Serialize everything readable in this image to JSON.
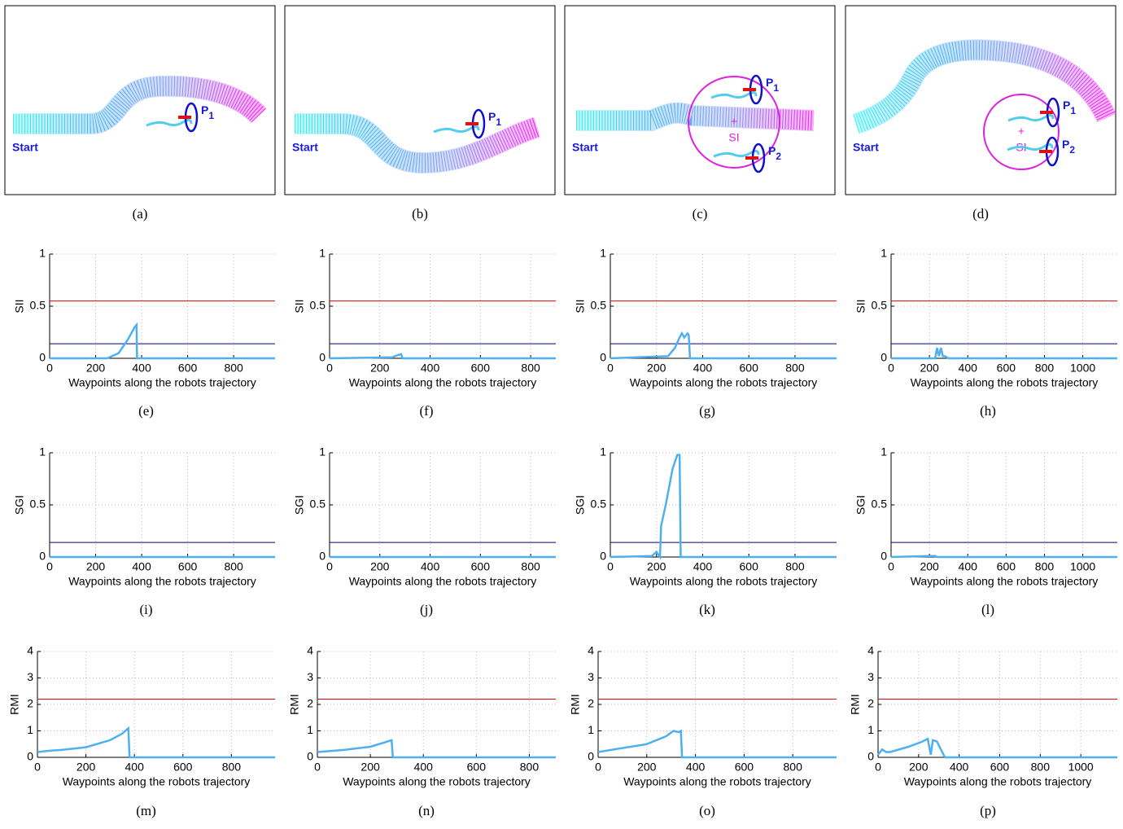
{
  "diagrams": [
    {
      "caption": "(a)",
      "start": "Start",
      "people": [
        {
          "label": "P",
          "sub": "1"
        }
      ]
    },
    {
      "caption": "(b)",
      "start": "Start",
      "people": [
        {
          "label": "P",
          "sub": "1"
        }
      ]
    },
    {
      "caption": "(c)",
      "start": "Start",
      "people": [
        {
          "label": "P",
          "sub": "1"
        },
        {
          "label": "P",
          "sub": "2"
        }
      ],
      "si": "SI"
    },
    {
      "caption": "(d)",
      "start": "Start",
      "people": [
        {
          "label": "P",
          "sub": "1"
        },
        {
          "label": "P",
          "sub": "2"
        }
      ],
      "si": "SI"
    }
  ],
  "chart_data": [
    {
      "type": "line",
      "caption": "(e)",
      "ylabel": "SII",
      "xlabel": "Waypoints along the robots trajectory",
      "xlim": [
        0,
        980
      ],
      "ylim": [
        0,
        1
      ],
      "xticks": [
        0,
        200,
        400,
        600,
        800
      ],
      "yticks": [
        0,
        0.5,
        1
      ],
      "grid": true,
      "hlines": [
        {
          "value": 0.55,
          "color": "#e00000"
        },
        {
          "value": 0.14,
          "color": "#000080"
        }
      ],
      "x": [
        0,
        250,
        300,
        340,
        370,
        378,
        380,
        980
      ],
      "series": [
        {
          "color": "#4fb0f0",
          "values": [
            0,
            0,
            0.05,
            0.18,
            0.3,
            0.32,
            0,
            0
          ]
        }
      ]
    },
    {
      "type": "line",
      "caption": "(f)",
      "ylabel": "SII",
      "xlabel": "Waypoints along the robots trajectory",
      "xlim": [
        0,
        900
      ],
      "ylim": [
        0,
        1
      ],
      "xticks": [
        0,
        200,
        400,
        600,
        800
      ],
      "yticks": [
        0,
        0.5,
        1
      ],
      "grid": true,
      "hlines": [
        {
          "value": 0.55,
          "color": "#e00000"
        },
        {
          "value": 0.14,
          "color": "#000080"
        }
      ],
      "x": [
        0,
        250,
        270,
        285,
        290,
        900
      ],
      "series": [
        {
          "color": "#4fb0f0",
          "values": [
            0,
            0.01,
            0.03,
            0.04,
            0,
            0
          ]
        }
      ]
    },
    {
      "type": "line",
      "caption": "(g)",
      "ylabel": "SII",
      "xlabel": "Waypoints along the robots trajectory",
      "xlim": [
        0,
        980
      ],
      "ylim": [
        0,
        1
      ],
      "xticks": [
        0,
        200,
        400,
        600,
        800
      ],
      "yticks": [
        0,
        0.5,
        1
      ],
      "grid": true,
      "hlines": [
        {
          "value": 0.55,
          "color": "#e00000"
        },
        {
          "value": 0.14,
          "color": "#000080"
        }
      ],
      "x": [
        0,
        250,
        280,
        300,
        310,
        320,
        335,
        340,
        345,
        980
      ],
      "series": [
        {
          "color": "#4fb0f0",
          "values": [
            0,
            0.02,
            0.1,
            0.2,
            0.24,
            0.2,
            0.24,
            0.22,
            0,
            0
          ]
        }
      ]
    },
    {
      "type": "line",
      "caption": "(h)",
      "ylabel": "SII",
      "xlabel": "Waypoints along the robots trajectory",
      "xlim": [
        0,
        1180
      ],
      "ylim": [
        0,
        1
      ],
      "xticks": [
        0,
        200,
        400,
        600,
        800,
        1000
      ],
      "yticks": [
        0,
        0.5,
        1
      ],
      "grid": true,
      "hlines": [
        {
          "value": 0.55,
          "color": "#e00000"
        },
        {
          "value": 0.14,
          "color": "#000080"
        }
      ],
      "x": [
        0,
        230,
        240,
        250,
        260,
        270,
        280,
        300,
        1180
      ],
      "series": [
        {
          "color": "#4fb0f0",
          "values": [
            0,
            0,
            0.1,
            0.02,
            0.1,
            0.02,
            0.02,
            0,
            0
          ]
        }
      ]
    },
    {
      "type": "line",
      "caption": "(i)",
      "ylabel": "SGI",
      "xlabel": "Waypoints along the robots trajectory",
      "xlim": [
        0,
        980
      ],
      "ylim": [
        0,
        1
      ],
      "xticks": [
        0,
        200,
        400,
        600,
        800
      ],
      "yticks": [
        0,
        0.5,
        1
      ],
      "grid": true,
      "hlines": [
        {
          "value": 0.14,
          "color": "#000080"
        }
      ],
      "x": [
        0,
        980
      ],
      "series": [
        {
          "color": "#4fb0f0",
          "values": [
            0,
            0
          ]
        }
      ]
    },
    {
      "type": "line",
      "caption": "(j)",
      "ylabel": "SGI",
      "xlabel": "Waypoints along the robots trajectory",
      "xlim": [
        0,
        900
      ],
      "ylim": [
        0,
        1
      ],
      "xticks": [
        0,
        200,
        400,
        600,
        800
      ],
      "yticks": [
        0,
        0.5,
        1
      ],
      "grid": true,
      "hlines": [
        {
          "value": 0.14,
          "color": "#000080"
        }
      ],
      "x": [
        0,
        900
      ],
      "series": [
        {
          "color": "#4fb0f0",
          "values": [
            0,
            0
          ]
        }
      ]
    },
    {
      "type": "line",
      "caption": "(k)",
      "ylabel": "SGI",
      "xlabel": "Waypoints along the robots trajectory",
      "xlim": [
        0,
        980
      ],
      "ylim": [
        0,
        1
      ],
      "xticks": [
        0,
        200,
        400,
        600,
        800
      ],
      "yticks": [
        0,
        0.5,
        1
      ],
      "grid": true,
      "hlines": [
        {
          "value": 0.14,
          "color": "#000080"
        }
      ],
      "x": [
        0,
        180,
        200,
        215,
        220,
        240,
        270,
        290,
        300,
        305,
        980
      ],
      "series": [
        {
          "color": "#4fb0f0",
          "values": [
            0,
            0.01,
            0.05,
            0,
            0.3,
            0.5,
            0.85,
            0.98,
            0.98,
            0,
            0
          ]
        }
      ]
    },
    {
      "type": "line",
      "caption": "(l)",
      "ylabel": "SGI",
      "xlabel": "Waypoints along the robots trajectory",
      "xlim": [
        0,
        1180
      ],
      "ylim": [
        0,
        1
      ],
      "xticks": [
        0,
        200,
        400,
        600,
        800,
        1000
      ],
      "yticks": [
        0,
        0.5,
        1
      ],
      "grid": true,
      "hlines": [
        {
          "value": 0.14,
          "color": "#000080"
        }
      ],
      "x": [
        0,
        200,
        230,
        240,
        1180
      ],
      "series": [
        {
          "color": "#4fb0f0",
          "values": [
            0,
            0.01,
            0.01,
            0,
            0
          ]
        }
      ]
    },
    {
      "type": "line",
      "caption": "(m)",
      "ylabel": "RMI",
      "xlabel": "Waypoints along the robots trajectory",
      "xlim": [
        0,
        980
      ],
      "ylim": [
        0,
        4
      ],
      "xticks": [
        0,
        200,
        400,
        600,
        800
      ],
      "yticks": [
        0,
        1,
        2,
        3,
        4
      ],
      "grid": true,
      "hlines": [
        {
          "value": 2.2,
          "color": "#e00000"
        }
      ],
      "x": [
        0,
        50,
        100,
        200,
        300,
        350,
        375,
        380,
        980
      ],
      "series": [
        {
          "color": "#4fb0f0",
          "values": [
            0.2,
            0.25,
            0.28,
            0.38,
            0.65,
            0.9,
            1.1,
            0,
            0
          ]
        }
      ]
    },
    {
      "type": "line",
      "caption": "(n)",
      "ylabel": "RMI",
      "xlabel": "Waypoints along the robots trajectory",
      "xlim": [
        0,
        900
      ],
      "ylim": [
        0,
        4
      ],
      "xticks": [
        0,
        200,
        400,
        600,
        800
      ],
      "yticks": [
        0,
        1,
        2,
        3,
        4
      ],
      "grid": true,
      "hlines": [
        {
          "value": 2.2,
          "color": "#e00000"
        }
      ],
      "x": [
        0,
        100,
        200,
        250,
        280,
        285,
        900
      ],
      "series": [
        {
          "color": "#4fb0f0",
          "values": [
            0.2,
            0.28,
            0.4,
            0.55,
            0.65,
            0,
            0
          ]
        }
      ]
    },
    {
      "type": "line",
      "caption": "(o)",
      "ylabel": "RMI",
      "xlabel": "Waypoints along the robots trajectory",
      "xlim": [
        0,
        980
      ],
      "ylim": [
        0,
        4
      ],
      "xticks": [
        0,
        200,
        400,
        600,
        800
      ],
      "yticks": [
        0,
        1,
        2,
        3,
        4
      ],
      "grid": true,
      "hlines": [
        {
          "value": 2.2,
          "color": "#e00000"
        }
      ],
      "x": [
        0,
        100,
        200,
        280,
        310,
        330,
        340,
        345,
        980
      ],
      "series": [
        {
          "color": "#4fb0f0",
          "values": [
            0.2,
            0.35,
            0.5,
            0.8,
            1.0,
            0.95,
            1.0,
            0,
            0
          ]
        }
      ]
    },
    {
      "type": "line",
      "caption": "(p)",
      "ylabel": "RMI",
      "xlabel": "Waypoints along the robots trajectory",
      "xlim": [
        0,
        1180
      ],
      "ylim": [
        0,
        4
      ],
      "xticks": [
        0,
        200,
        400,
        600,
        800,
        1000
      ],
      "yticks": [
        0,
        1,
        2,
        3,
        4
      ],
      "grid": true,
      "hlines": [
        {
          "value": 2.2,
          "color": "#e00000"
        }
      ],
      "x": [
        0,
        20,
        40,
        60,
        150,
        220,
        245,
        260,
        270,
        290,
        310,
        330,
        1180
      ],
      "series": [
        {
          "color": "#4fb0f0",
          "values": [
            0.1,
            0.3,
            0.2,
            0.2,
            0.4,
            0.6,
            0.7,
            0.1,
            0.65,
            0.6,
            0.3,
            0,
            0
          ]
        }
      ]
    }
  ]
}
